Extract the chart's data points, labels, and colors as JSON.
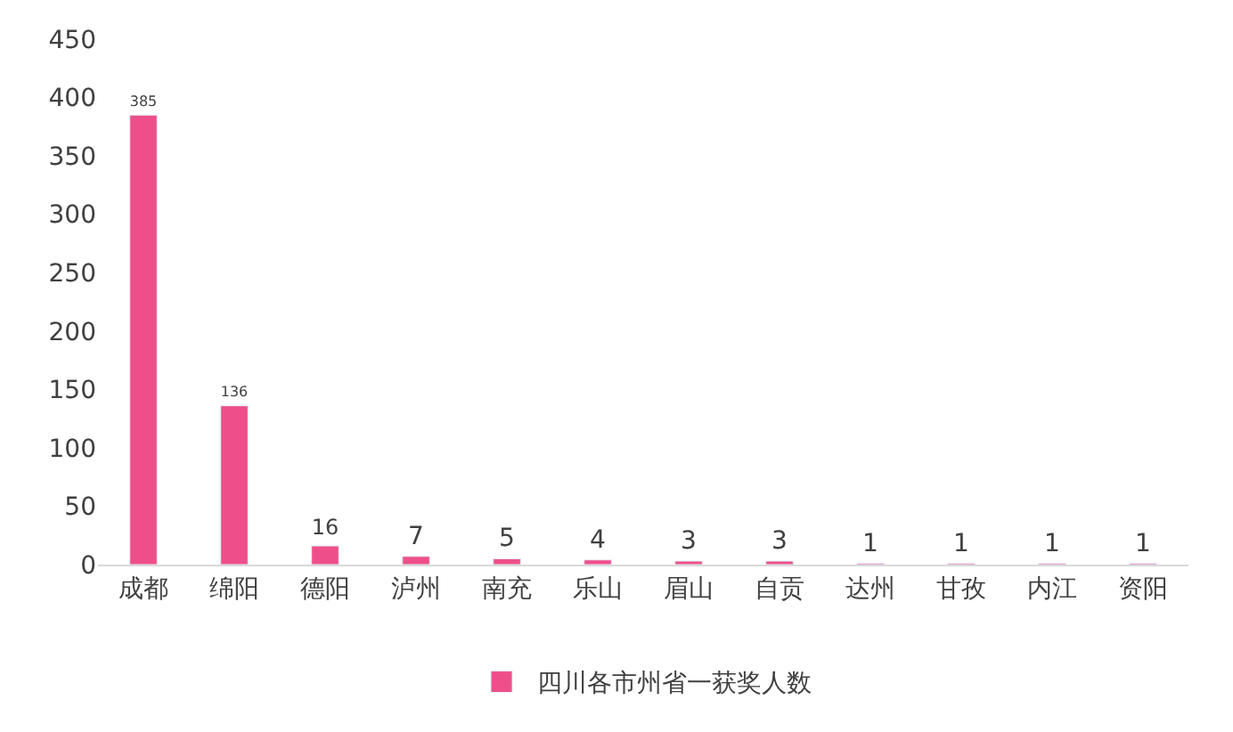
{
  "chart_data": {
    "type": "bar",
    "categories": [
      "成都",
      "绵阳",
      "德阳",
      "泸州",
      "南充",
      "乐山",
      "眉山",
      "自贡",
      "达州",
      "甘孜",
      "内江",
      "资阳"
    ],
    "series": [
      {
        "name": "四川各市州省一获奖人数",
        "color": "#ee4f8a",
        "values": [
          385,
          136,
          16,
          7,
          5,
          4,
          3,
          3,
          1,
          1,
          1,
          1
        ]
      }
    ],
    "ylim": [
      0,
      450
    ],
    "yticks": [
      0,
      50,
      100,
      150,
      200,
      250,
      300,
      350,
      400,
      450
    ],
    "data_labels": true,
    "grid": false,
    "legend": "bottom"
  }
}
